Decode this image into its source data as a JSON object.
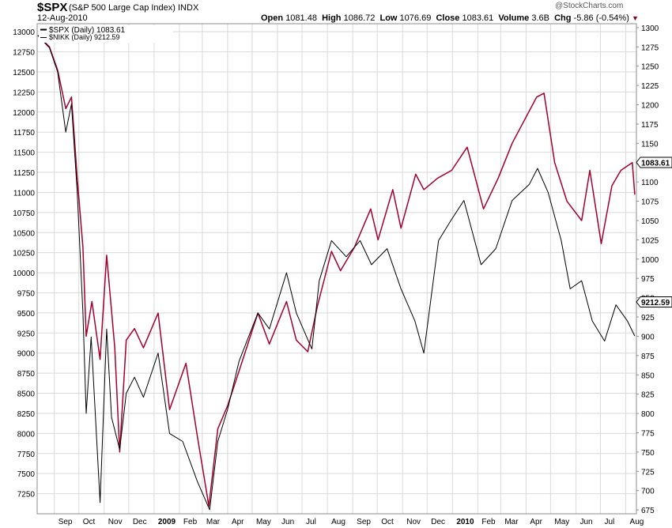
{
  "header": {
    "symbol": "$SPX",
    "name": "(S&P 500 Large Cap Index) INDX",
    "date": "12-Aug-2010",
    "brand": "@StockCharts.com",
    "open_label": "Open",
    "open": "1081.48",
    "high_label": "High",
    "high": "1086.72",
    "low_label": "Low",
    "low": "1076.69",
    "close_label": "Close",
    "close": "1083.61",
    "volume_label": "Volume",
    "volume": "3.6B",
    "chg_label": "Chg",
    "chg": "-5.86 (-0.54%)",
    "chg_arrow": "▼"
  },
  "legend": {
    "spx": "$SPX (Daily) 1083.61",
    "nikk": "$NIKK (Daily) 9212.59"
  },
  "right_label": "1083.61",
  "left_label": "9212.59",
  "colors": {
    "spx": "#a3002e",
    "nikk": "#000000",
    "grid": "#d9d9d9"
  },
  "chart_data": {
    "type": "line",
    "x_ticks": [
      "Sep",
      "Oct",
      "Nov",
      "Dec",
      "2009",
      "Feb",
      "Mar",
      "Apr",
      "May",
      "Jun",
      "Jul",
      "Aug",
      "Sep",
      "Oct",
      "Nov",
      "Dec",
      "2010",
      "Feb",
      "Mar",
      "Apr",
      "May",
      "Jun",
      "Jul",
      "Aug"
    ],
    "left_axis": {
      "series": "$NIKK",
      "range": [
        7000,
        13100
      ],
      "ticks": [
        7250,
        7500,
        7750,
        8000,
        8250,
        8500,
        8750,
        9000,
        9250,
        9500,
        9750,
        10000,
        10250,
        10500,
        10750,
        11000,
        11250,
        11500,
        11750,
        12000,
        12250,
        12500,
        12750,
        13000
      ]
    },
    "right_axis": {
      "series": "$SPX",
      "range": [
        670,
        1305
      ],
      "ticks": [
        675,
        700,
        725,
        750,
        775,
        800,
        825,
        850,
        875,
        900,
        925,
        950,
        975,
        1000,
        1025,
        1050,
        1075,
        1100,
        1125,
        1150,
        1175,
        1200,
        1225,
        1250,
        1275,
        1300
      ]
    },
    "series": [
      {
        "name": "$SPX (Daily) 1083.61",
        "axis": "right",
        "color": "#a3002e",
        "x": [
          "2008-08-12",
          "2008-08-26",
          "2008-09-05",
          "2008-09-15",
          "2008-09-22",
          "2008-09-29",
          "2008-10-06",
          "2008-10-10",
          "2008-10-17",
          "2008-10-27",
          "2008-11-04",
          "2008-11-14",
          "2008-11-20",
          "2008-11-28",
          "2008-12-08",
          "2008-12-19",
          "2009-01-06",
          "2009-01-20",
          "2009-02-09",
          "2009-02-23",
          "2009-03-09",
          "2009-03-20",
          "2009-04-01",
          "2009-04-15",
          "2009-05-08",
          "2009-05-22",
          "2009-06-12",
          "2009-06-24",
          "2009-07-08",
          "2009-07-20",
          "2009-08-06",
          "2009-08-17",
          "2009-09-03",
          "2009-09-23",
          "2009-10-02",
          "2009-10-20",
          "2009-10-30",
          "2009-11-17",
          "2009-11-27",
          "2009-12-14",
          "2009-12-31",
          "2010-01-19",
          "2010-02-08",
          "2010-02-26",
          "2010-03-15",
          "2010-04-14",
          "2010-04-23",
          "2010-05-06",
          "2010-05-21",
          "2010-06-08",
          "2010-06-18",
          "2010-07-02",
          "2010-07-15",
          "2010-07-26",
          "2010-08-09",
          "2010-08-12"
        ],
        "values": [
          1290,
          1275,
          1245,
          1195,
          1210,
          1105,
          1015,
          900,
          945,
          870,
          1005,
          885,
          750,
          895,
          910,
          885,
          930,
          805,
          865,
          770,
          680,
          780,
          810,
          855,
          930,
          890,
          945,
          895,
          880,
          940,
          1010,
          985,
          1015,
          1065,
          1025,
          1090,
          1040,
          1110,
          1090,
          1105,
          1115,
          1145,
          1065,
          1105,
          1150,
          1210,
          1215,
          1125,
          1075,
          1050,
          1115,
          1020,
          1095,
          1115,
          1125,
          1083.61
        ]
      },
      {
        "name": "$NIKK (Daily) 9212.59",
        "axis": "left",
        "color": "#000000",
        "x": [
          "2008-08-12",
          "2008-08-26",
          "2008-09-05",
          "2008-09-15",
          "2008-09-22",
          "2008-09-29",
          "2008-10-06",
          "2008-10-10",
          "2008-10-16",
          "2008-10-27",
          "2008-11-04",
          "2008-11-10",
          "2008-11-20",
          "2008-11-28",
          "2008-12-08",
          "2008-12-19",
          "2009-01-06",
          "2009-01-20",
          "2009-02-05",
          "2009-02-23",
          "2009-03-10",
          "2009-03-20",
          "2009-04-01",
          "2009-04-15",
          "2009-05-08",
          "2009-05-22",
          "2009-06-12",
          "2009-06-24",
          "2009-07-13",
          "2009-07-22",
          "2009-08-06",
          "2009-08-24",
          "2009-09-10",
          "2009-09-24",
          "2009-10-13",
          "2009-10-30",
          "2009-11-16",
          "2009-11-27",
          "2009-12-15",
          "2009-12-30",
          "2010-01-15",
          "2010-02-05",
          "2010-02-23",
          "2010-03-15",
          "2010-04-05",
          "2010-04-15",
          "2010-04-28",
          "2010-05-14",
          "2010-05-25",
          "2010-06-08",
          "2010-06-21",
          "2010-07-06",
          "2010-07-20",
          "2010-08-03",
          "2010-08-12"
        ],
        "values": [
          12950,
          12800,
          12500,
          11750,
          12100,
          11000,
          9500,
          8250,
          9200,
          7140,
          9300,
          8200,
          7800,
          8500,
          8700,
          8450,
          9000,
          8000,
          7900,
          7400,
          7050,
          7900,
          8300,
          8900,
          9500,
          9300,
          10000,
          9500,
          9050,
          9900,
          10400,
          10200,
          10400,
          10100,
          10300,
          9800,
          9400,
          9000,
          10400,
          10650,
          10900,
          10100,
          10300,
          10900,
          11100,
          11300,
          11000,
          10400,
          9800,
          9900,
          9400,
          9150,
          9600,
          9400,
          9212.59
        ]
      }
    ]
  }
}
